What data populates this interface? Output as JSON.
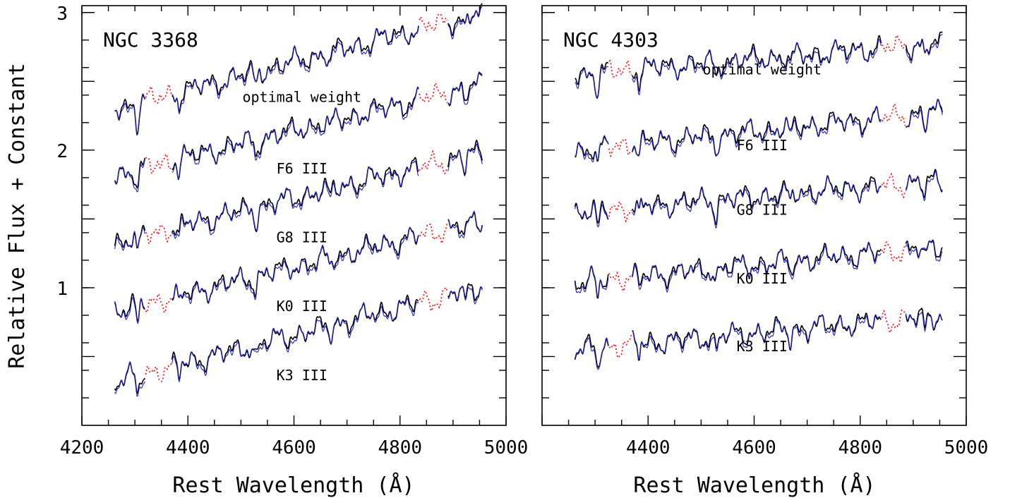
{
  "figure": {
    "ylabel": "Relative Flux + Constant",
    "xlabel": "Rest Wavelength (Å)"
  },
  "chart_data": [
    {
      "type": "line",
      "title": "NGC 3368",
      "xlabel": "Rest Wavelength (Å)",
      "ylabel": "Relative Flux + Constant",
      "xlim": [
        4200,
        5000
      ],
      "ylim": [
        0,
        3.05
      ],
      "xticks": [
        4200,
        4400,
        4600,
        4800,
        5000
      ],
      "yticks": [
        1,
        2,
        3
      ],
      "colors": {
        "observed": "#000000",
        "template_fit": "#1f1fcf",
        "masked": "#ff1a1a"
      },
      "masked_regions": [
        [
          4320,
          4370
        ],
        [
          4835,
          4890
        ]
      ],
      "spectra": [
        {
          "label": "optimal weight",
          "offset": 2.38,
          "start": 2.3,
          "end": 3.0
        },
        {
          "label": "F6 III",
          "offset": 1.86,
          "start": 1.82,
          "end": 2.48
        },
        {
          "label": "G8 III",
          "offset": 1.36,
          "start": 1.33,
          "end": 1.99
        },
        {
          "label": "K0 III",
          "offset": 0.86,
          "start": 0.83,
          "end": 1.49
        },
        {
          "label": "K3 III",
          "offset": 0.36,
          "start": 0.32,
          "end": 1.01
        }
      ]
    },
    {
      "type": "line",
      "title": "NGC 4303",
      "xlabel": "Rest Wavelength (Å)",
      "xlim": [
        4200,
        5000
      ],
      "ylim": [
        0,
        3.05
      ],
      "xticks": [
        4400,
        4600,
        4800,
        5000
      ],
      "colors": {
        "observed": "#000000",
        "template_fit": "#1f1fcf",
        "masked": "#ff1a1a"
      },
      "masked_regions": [
        [
          4325,
          4370
        ],
        [
          4840,
          4885
        ]
      ],
      "spectra": [
        {
          "label": "optimal weight",
          "offset": 2.58,
          "start": 2.55,
          "end": 2.78
        },
        {
          "label": "F6 III",
          "offset": 2.03,
          "start": 2.0,
          "end": 2.28
        },
        {
          "label": "G8 III",
          "offset": 1.56,
          "start": 1.55,
          "end": 1.78
        },
        {
          "label": "K0 III",
          "offset": 1.06,
          "start": 1.04,
          "end": 1.3
        },
        {
          "label": "K3 III",
          "offset": 0.57,
          "start": 0.55,
          "end": 0.8
        }
      ]
    }
  ]
}
